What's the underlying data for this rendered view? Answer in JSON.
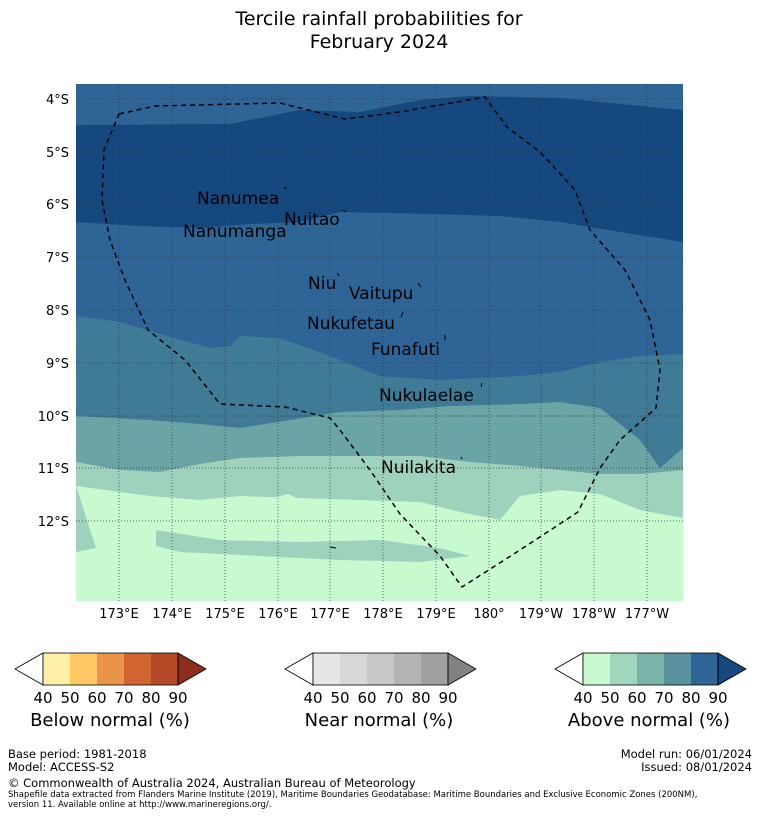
{
  "title_line1": "Tercile rainfall probabilities for",
  "title_line2": "February 2024",
  "lat_ticks": [
    "4°S",
    "5°S",
    "6°S",
    "7°S",
    "8°S",
    "9°S",
    "10°S",
    "11°S",
    "12°S"
  ],
  "lon_ticks": [
    "173°E",
    "174°E",
    "175°E",
    "176°E",
    "177°E",
    "178°E",
    "179°E",
    "180°",
    "179°W",
    "178°W",
    "177°W"
  ],
  "islands": [
    "Nanumea",
    "Nuitao",
    "Nanumanga",
    "Niu",
    "Vaitupu",
    "Nukufetau",
    "Funafuti",
    "Nukulaelae",
    "Nuilakita"
  ],
  "colorbars": [
    {
      "label": "Below normal (%)",
      "ticks": [
        "40",
        "50",
        "60",
        "70",
        "80",
        "90"
      ],
      "colors": [
        "#ffffff",
        "#fff0a8",
        "#ffc864",
        "#e8954a",
        "#d26432",
        "#b44a28",
        "#8c2d1e"
      ]
    },
    {
      "label": "Near normal (%)",
      "ticks": [
        "40",
        "50",
        "60",
        "70",
        "80",
        "90"
      ],
      "colors": [
        "#ffffff",
        "#e6e6e6",
        "#d8d8d8",
        "#c8c8c8",
        "#b4b4b4",
        "#a0a0a0",
        "#828282"
      ]
    },
    {
      "label": "Above normal (%)",
      "ticks": [
        "40",
        "50",
        "60",
        "70",
        "80",
        "90"
      ],
      "colors": [
        "#ffffff",
        "#c8fad0",
        "#a0d6bc",
        "#7ab4a8",
        "#5a92a0",
        "#2f6496",
        "#14487e"
      ]
    }
  ],
  "footer": {
    "base_period": "Base period: 1981-2018",
    "model": "Model: ACCESS-S2",
    "model_run": "Model run: 06/01/2024",
    "issued": "Issued: 08/01/2024",
    "copyright": "© Commonwealth of Australia 2024, Australian Bureau of Meteorology",
    "shapefile_line1": "Shapefile data extracted from Flanders Marine Institute (2019), Maritime Boundaries Geodatabase: Maritime Boundaries and Exclusive Economic Zones (200NM),",
    "shapefile_line2": "version 11. Available online at http://www.marineregions.org/."
  }
}
